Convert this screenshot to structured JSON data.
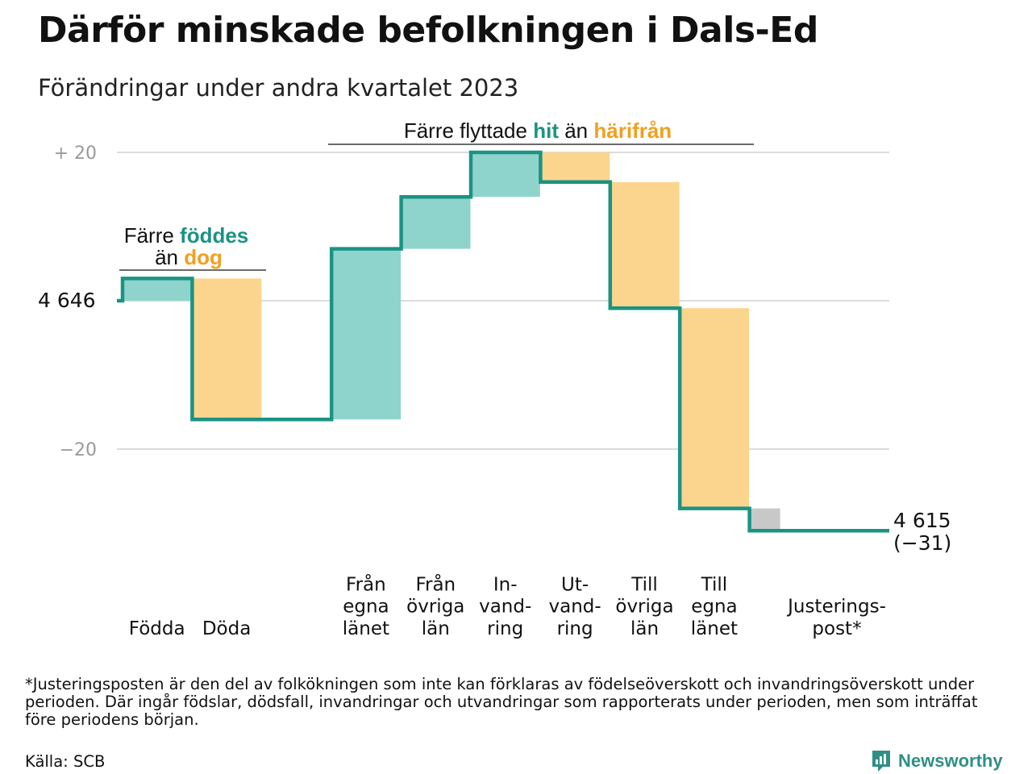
{
  "header": {
    "title": "Därför minskade befolkningen i Dals-Ed",
    "subtitle": "Förändringar under andra kvartalet 2023"
  },
  "colors": {
    "line": "#1b9383",
    "increase": "#8fd4cc",
    "decrease": "#fbd58d",
    "adjustment": "#c8c8c8",
    "grid": "#dcdcdc",
    "teal_text": "#1b9383",
    "orange_text": "#f0a020"
  },
  "chart_data": {
    "type": "bar",
    "subtype": "waterfall",
    "start_value": 4646,
    "end_value": 4615,
    "ylim": [
      -36,
      22
    ],
    "y_ticks": [
      {
        "value": 20,
        "label": "+  20"
      },
      {
        "value": 0,
        "label": "4  646"
      },
      {
        "value": -20,
        "label": "−20"
      }
    ],
    "steps": [
      {
        "label_lines": [
          "Födda"
        ],
        "change": 3,
        "kind": "increase"
      },
      {
        "label_lines": [
          "Döda"
        ],
        "change": -19,
        "kind": "decrease"
      },
      {
        "label_lines": [
          ""
        ],
        "change": 0,
        "kind": "gap"
      },
      {
        "label_lines": [
          "Från",
          "egna",
          "länet"
        ],
        "change": 23,
        "kind": "increase"
      },
      {
        "label_lines": [
          "Från",
          "övriga",
          "län"
        ],
        "change": 7,
        "kind": "increase"
      },
      {
        "label_lines": [
          "In-",
          "vand-",
          "ring"
        ],
        "change": 6,
        "kind": "increase"
      },
      {
        "label_lines": [
          "Ut-",
          "vand-",
          "ring"
        ],
        "change": -4,
        "kind": "decrease"
      },
      {
        "label_lines": [
          "Till",
          "övriga",
          "län"
        ],
        "change": -17,
        "kind": "decrease"
      },
      {
        "label_lines": [
          "Till",
          "egna",
          "länet"
        ],
        "change": -27,
        "kind": "decrease"
      },
      {
        "label_lines": [
          "Justerings-",
          "post*"
        ],
        "change": -3,
        "kind": "adjustment"
      }
    ],
    "end_label": [
      "4 615",
      "(−31)"
    ],
    "annotations": {
      "births": {
        "line1": "Färre",
        "line1_highlight": "föddes",
        "line2": "än",
        "line2_highlight": "dog"
      },
      "moves": {
        "text": "Färre flyttade",
        "highlight1": "hit",
        "middle": "än",
        "highlight2": "härifrån"
      }
    }
  },
  "footnote": "*Justeringsposten är den del av folkökningen som inte kan förklaras av födelseöverskott och invandringsöverskott under perioden. Där ingår födslar, dödsfall, invandringar och utvandringar som rapporterats under perioden, men som inträffat före periodens början.",
  "source": "Källa: SCB",
  "brand": {
    "name": "Newsworthy",
    "icon": "newsworthy-logo-icon"
  }
}
